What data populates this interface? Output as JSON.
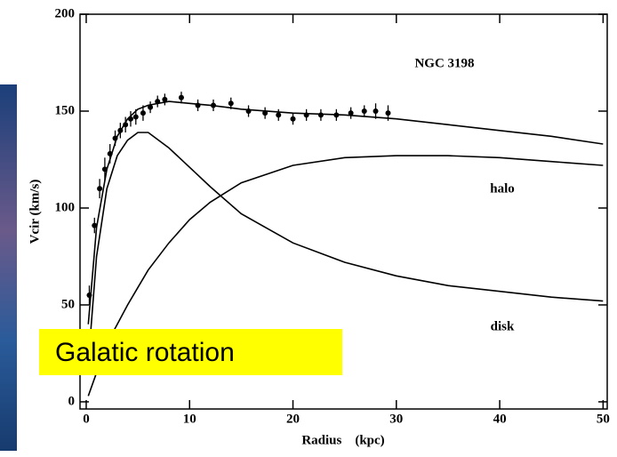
{
  "chart_data": {
    "type": "line",
    "title": "NGC 3198",
    "xlabel": "Radius    (kpc)",
    "ylabel": "Vcir (km/s)",
    "x": [
      0.2,
      1,
      2,
      3,
      4,
      5,
      6,
      8,
      10,
      12,
      15,
      20,
      25,
      30,
      35,
      40,
      45,
      50
    ],
    "series": [
      {
        "color": "#000000",
        "values": [
          40,
          90,
          120,
          137,
          146,
          151,
          153,
          155,
          154,
          153,
          151,
          149,
          148,
          146,
          143,
          140,
          137,
          133
        ]
      },
      {
        "name": "halo",
        "color": "#000000",
        "values": [
          3,
          15,
          30,
          40,
          50,
          59,
          68,
          82,
          94,
          103,
          113,
          122,
          126,
          127,
          127,
          126,
          124,
          122
        ]
      },
      {
        "name": "disk",
        "color": "#000000",
        "values": [
          20,
          75,
          110,
          127,
          135,
          139,
          139,
          131,
          121,
          111,
          97,
          82,
          72,
          65,
          60,
          57,
          54,
          52
        ]
      }
    ],
    "observations": {
      "color": "#000000",
      "x": [
        0.3,
        0.8,
        1.3,
        1.8,
        2.3,
        2.8,
        3.3,
        3.8,
        4.3,
        4.8,
        5.5,
        6.2,
        6.9,
        7.6,
        9.2,
        10.8,
        12.3,
        14.0,
        15.7,
        17.3,
        18.6,
        20.0,
        21.3,
        22.7,
        24.2,
        25.6,
        26.9,
        28.0,
        29.2
      ],
      "values": [
        55,
        91,
        110,
        120,
        128,
        136,
        140,
        143,
        146,
        147,
        149,
        152,
        155,
        156,
        157,
        153,
        153,
        154,
        150,
        149,
        148,
        146,
        148,
        148,
        148,
        149,
        150,
        150,
        149
      ],
      "errors": [
        5,
        4,
        5,
        6,
        5,
        4,
        4,
        4,
        4,
        4,
        4,
        3,
        3,
        3,
        3,
        3,
        3,
        3,
        3,
        3,
        3,
        3,
        3,
        3,
        3,
        3,
        3,
        4,
        4
      ]
    },
    "xlim": [
      -0.6,
      50.4
    ],
    "ylim": [
      -3.7,
      200
    ],
    "xticks": [
      0,
      10,
      20,
      30,
      40,
      50
    ],
    "yticks": [
      0,
      50,
      100,
      150,
      200
    ],
    "annotation": "Galatic rotation"
  }
}
